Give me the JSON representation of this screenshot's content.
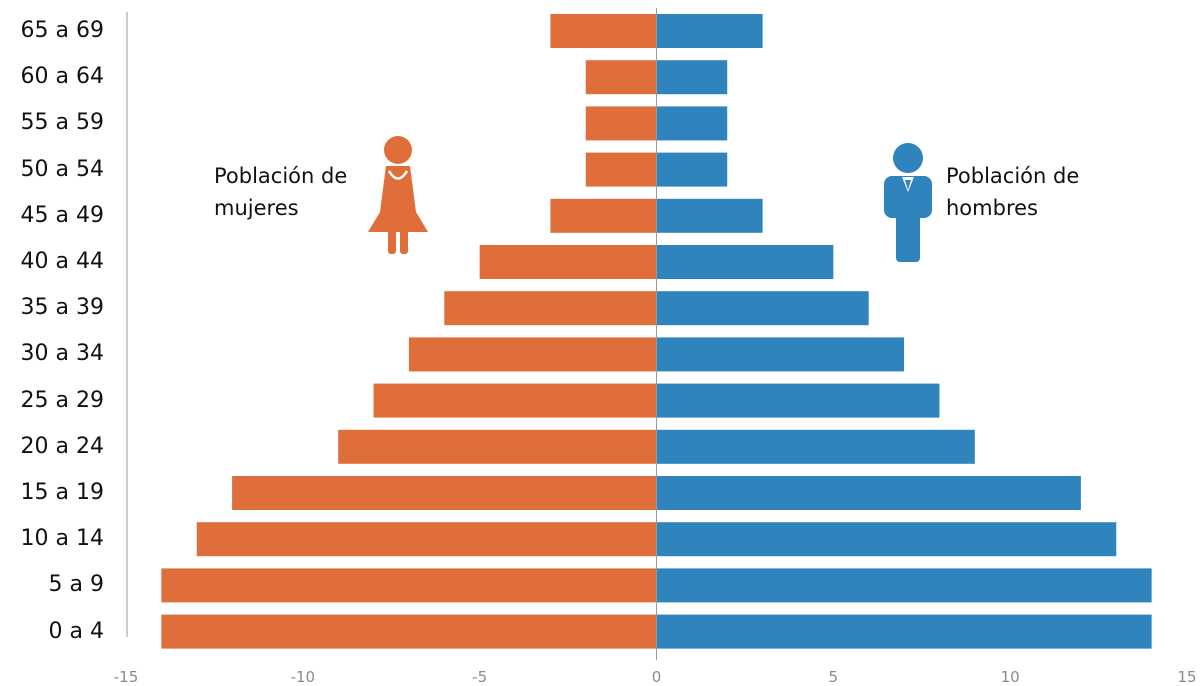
{
  "colors": {
    "women": "#E06E3A",
    "men": "#2F84BD",
    "axis": "#9a9a9a"
  },
  "legend": {
    "women_label": "Población de\nmujeres",
    "men_label": "Población de\nhombres",
    "women_icon": "woman-icon",
    "men_icon": "man-icon"
  },
  "chart_data": {
    "type": "bar",
    "orientation": "horizontal",
    "categories": [
      "65 a 69",
      "60 a 64",
      "55 a 59",
      "50 a 54",
      "45 a 49",
      "40 a 44",
      "35 a 39",
      "30 a 34",
      "25 a 29",
      "20 a 24",
      "15 a 19",
      "10 a 14",
      "5 a 9",
      "0 a 4"
    ],
    "series": [
      {
        "name": "Población de mujeres",
        "values": [
          -3,
          -2,
          -2,
          -2,
          -3,
          -5,
          -6,
          -7,
          -8,
          -9,
          -12,
          -13,
          -14,
          -14
        ]
      },
      {
        "name": "Población de hombres",
        "values": [
          3,
          2,
          2,
          2,
          3,
          5,
          6,
          7,
          8,
          9,
          12,
          13,
          14,
          14
        ]
      }
    ],
    "xlim": [
      -15,
      15
    ],
    "xticks": [
      -15,
      -10,
      -5,
      0,
      5,
      10,
      15
    ],
    "xtick_labels": [
      "-15",
      "-10",
      "-5",
      "0",
      "5",
      "10",
      "15"
    ],
    "title": "",
    "xlabel": "",
    "ylabel": "",
    "grid": false
  }
}
